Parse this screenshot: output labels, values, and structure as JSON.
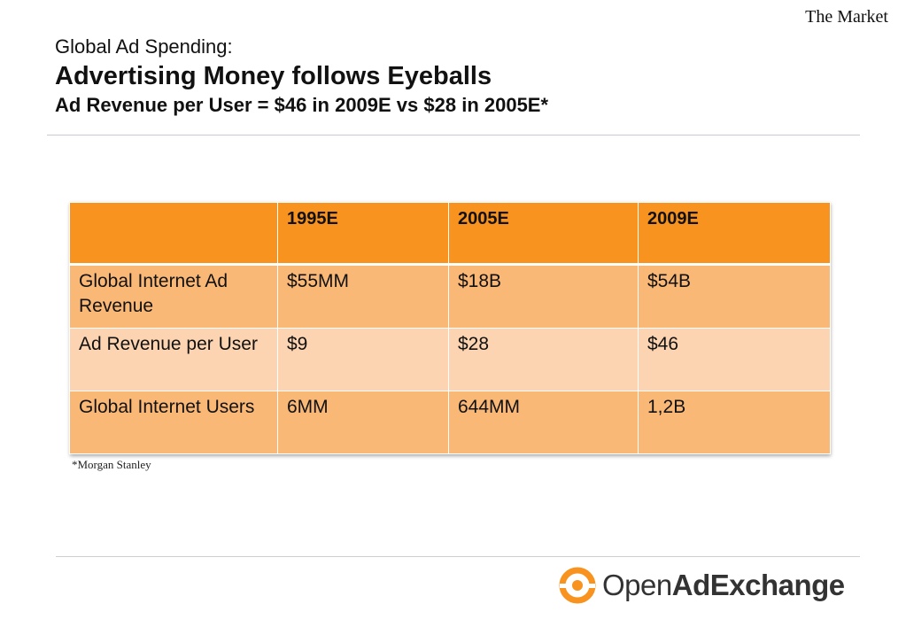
{
  "header": {
    "section": "The Market",
    "title_line1": "Global Ad Spending:",
    "title_line2": "Advertising Money follows Eyeballs",
    "title_line3": "Ad Revenue per User = $46 in 2009E vs $28 in 2005E*"
  },
  "table": {
    "columns": [
      "",
      "1995E",
      "2005E",
      "2009E"
    ],
    "rows": [
      [
        "Global Internet Ad Revenue",
        "$55MM",
        "$18B",
        "$54B"
      ],
      [
        "Ad Revenue per User",
        "$9",
        "$28",
        "$46"
      ],
      [
        "Global Internet Users",
        "6MM",
        "644MM",
        "1,2B"
      ]
    ]
  },
  "footnote": "*Morgan Stanley",
  "logo": {
    "part1": "Open",
    "part2": "AdExchange"
  },
  "colors": {
    "header_orange": "#f7931e",
    "row_orange": "#fab877",
    "row_light": "#fdd4b1",
    "logo_orange": "#f7931e"
  }
}
